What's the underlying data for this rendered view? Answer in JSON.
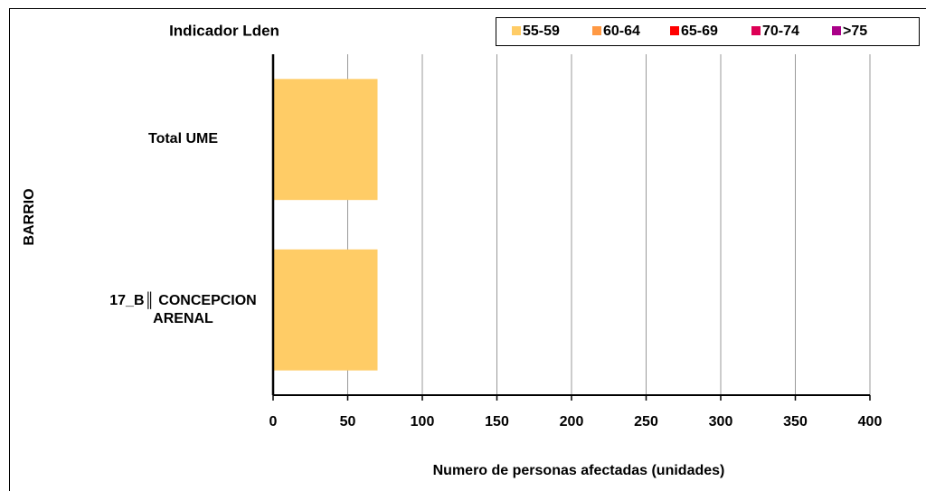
{
  "chart_data": {
    "type": "stacked-barh",
    "title": "Indicador Lden",
    "categories": [
      "Total UME",
      "17_B║ CONCEPCION ARENAL"
    ],
    "series": [
      {
        "name": "55-59",
        "color": "#ffcc66",
        "values": [
          70,
          70
        ]
      },
      {
        "name": "60-64",
        "color": "#ff9944",
        "values": [
          0,
          0
        ]
      },
      {
        "name": "65-69",
        "color": "#ff0000",
        "values": [
          0,
          0
        ]
      },
      {
        "name": "70-74",
        "color": "#dd0055",
        "values": [
          0,
          0
        ]
      },
      {
        "name": ">75",
        "color": "#aa0088",
        "values": [
          0,
          0
        ]
      }
    ],
    "xlim": [
      0,
      400
    ],
    "xticks": [
      0,
      50,
      100,
      150,
      200,
      250,
      300,
      350,
      400
    ],
    "xlabel": "Numero de personas afectadas (unidades)",
    "ylabel": "BARRIO",
    "grid": true,
    "legend": "top"
  }
}
